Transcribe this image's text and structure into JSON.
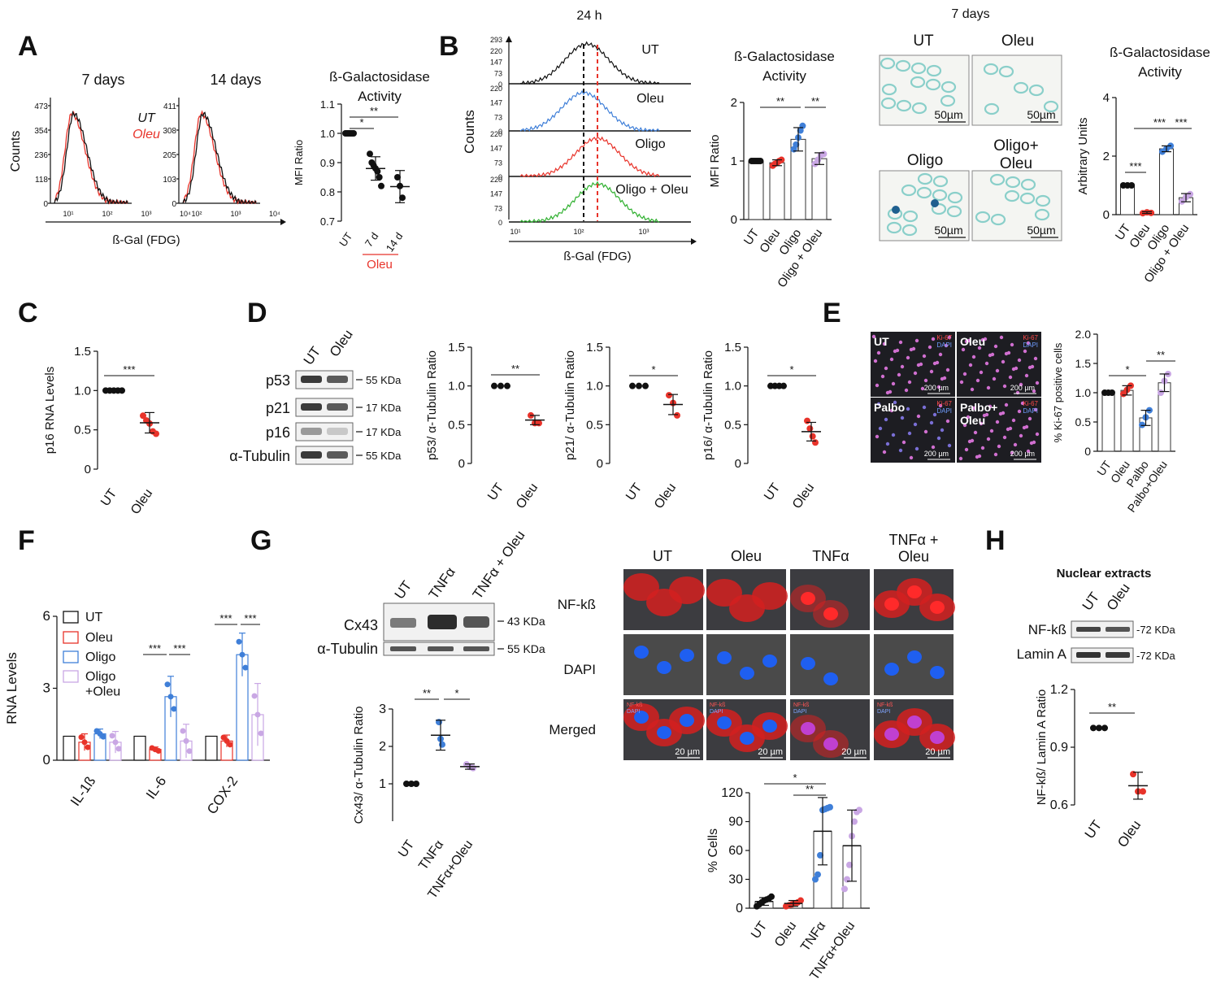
{
  "panel_letters": [
    "A",
    "B",
    "C",
    "D",
    "E",
    "F",
    "G",
    "H"
  ],
  "panelA": {
    "hist_titles": [
      "7 days",
      "14 days"
    ],
    "ylabel": "Counts",
    "xlabel": "ß-Gal (FDG)",
    "legend": [
      "UT",
      "Oleu"
    ],
    "hist1_yticks": [
      "473",
      "354",
      "236",
      "118",
      "0"
    ],
    "hist2_yticks": [
      "411",
      "308",
      "205",
      "103",
      "0"
    ],
    "xticks": [
      "10¹",
      "10²",
      "10³",
      "10⁴"
    ],
    "chart_title": [
      "ß-Galactosidase",
      "Activity"
    ],
    "chart_ylabel": "MFI Ratio",
    "chart_xticks": [
      "UT",
      "7 d",
      "14 d"
    ],
    "chart_group_label": "Oleu",
    "sig": [
      "*",
      "**"
    ]
  },
  "panelB": {
    "top_title": "24 h",
    "ylabel": "Counts",
    "xlabel": "ß-Gal (FDG)",
    "track_labels": [
      "UT",
      "Oleu",
      "Oligo",
      "Oligo + Oleu"
    ],
    "track1_yticks": [
      "293",
      "220",
      "147",
      "73",
      "0"
    ],
    "track_yticks": [
      "220",
      "147",
      "73",
      "0"
    ],
    "xticks": [
      "10¹",
      "10²",
      "10³"
    ],
    "chart_title": [
      "ß-Galactosidase",
      "Activity"
    ],
    "chart_ylabel": "MFI Ratio",
    "chart_xticks": [
      "UT",
      "Oleu",
      "Oligo",
      "Oligo + Oleu"
    ],
    "sig": [
      "**",
      "**"
    ],
    "img_title": "7 days",
    "img_labels": [
      "UT",
      "Oleu",
      "Oligo",
      "Oligo+\nOleu"
    ],
    "scale": "50µm",
    "chart2_title": [
      "ß-Galactosidase",
      "Activity"
    ],
    "chart2_ylabel": "Arbitrary Units",
    "chart2_xticks": [
      "UT",
      "Oleu",
      "Oligo",
      "Oligo + Oleu"
    ],
    "sig2": [
      "***",
      "***",
      "***"
    ]
  },
  "panelC": {
    "ylabel": "p16 RNA Levels",
    "xticks": [
      "UT",
      "Oleu"
    ],
    "sig": "***"
  },
  "panelD": {
    "lanes": [
      "UT",
      "Oleu"
    ],
    "proteins": [
      "p53",
      "p21",
      "p16",
      "α-Tubulin"
    ],
    "sizes": [
      "55 KDa",
      "17 KDa",
      "17 KDa",
      "55 KDa"
    ],
    "ylabels": [
      "p53/ α-Tubulin Ratio",
      "p21/ α-Tubulin Ratio",
      "p16/ α-Tubulin Ratio"
    ],
    "xticks": [
      "UT",
      "Oleu"
    ],
    "sig": [
      "**",
      "*",
      "*"
    ]
  },
  "panelE": {
    "tiles": [
      "UT",
      "Oleu",
      "Palbo",
      "Palbo+\nOleu"
    ],
    "stain": [
      "Ki-67",
      "DAPI"
    ],
    "scale": "200 µm",
    "ylabel": "% Ki-67 positive cells",
    "xticks": [
      "UT",
      "Oleu",
      "Palbo",
      "Palbo+Oleu"
    ],
    "sig": [
      "*",
      "**"
    ]
  },
  "panelF": {
    "ylabel": "RNA Levels",
    "legend": [
      "UT",
      "Oleu",
      "Oligo",
      "Oligo\n+Oleu"
    ],
    "groups": [
      "IL-1ß",
      "IL-6",
      "COX-2"
    ],
    "sig": [
      "***",
      "***",
      "***",
      "***"
    ]
  },
  "panelG": {
    "lanes": [
      "UT",
      "TNFα",
      "TNFα + Oleu"
    ],
    "proteins": [
      "Cx43",
      "α-Tubulin"
    ],
    "sizes": [
      "43 KDa",
      "55 KDa"
    ],
    "ylabel": "Cx43/ α-Tubulin Ratio",
    "xticks": [
      "UT",
      "TNFα",
      "TNFα+Oleu"
    ],
    "sig": [
      "**",
      "*"
    ],
    "img_cols": [
      "UT",
      "Oleu",
      "TNFα",
      "TNFα +\nOleu"
    ],
    "img_rows": [
      "NF-kß",
      "DAPI",
      "Merged"
    ],
    "scale": "20 µm",
    "merged_tags": [
      "NF-kß",
      "DAPI"
    ],
    "chart2_ylabel": "% Cells",
    "chart2_xticks": [
      "UT",
      "Oleu",
      "TNFα",
      "TNFα+Oleu"
    ],
    "sig2": [
      "*",
      "**"
    ]
  },
  "panelH": {
    "title": "Nuclear extracts",
    "lanes": [
      "UT",
      "Oleu"
    ],
    "proteins": [
      "NF-kß",
      "Lamin A"
    ],
    "sizes": [
      "72 KDa",
      "72 KDa"
    ],
    "ylabel": "NF-kß/ Lamin A Ratio",
    "xticks": [
      "UT",
      "Oleu"
    ],
    "sig": "**"
  },
  "colors": {
    "ut": "#111111",
    "oleu": "#e8332a",
    "oligo": "#3f7fd8",
    "combo": "#c9a7e4",
    "green": "#2fb02f",
    "stain_blue": "#6fc5bf"
  },
  "chart_data": [
    {
      "type": "scatter",
      "panel": "A",
      "title": "ß-Galactosidase Activity",
      "ylabel": "MFI Ratio",
      "categories": [
        "UT",
        "7 d",
        "14 d"
      ],
      "ylim": [
        0.7,
        1.1
      ],
      "yticks": [
        0.7,
        0.8,
        0.9,
        1.0,
        1.1
      ],
      "series": [
        {
          "name": "UT",
          "values": [
            1.0
          ]
        },
        {
          "name": "Oleu 7 d",
          "values": [
            0.93,
            0.9,
            0.89,
            0.88,
            0.87,
            0.85,
            0.82
          ]
        },
        {
          "name": "Oleu 14 d",
          "values": [
            0.85,
            0.82,
            0.78
          ]
        }
      ],
      "means": [
        1.0,
        0.88,
        0.818
      ],
      "sd": [
        0.0,
        0.04,
        0.055
      ]
    },
    {
      "type": "bar",
      "panel": "B",
      "title": "ß-Galactosidase Activity",
      "ylabel": "MFI Ratio",
      "categories": [
        "UT",
        "Oleu",
        "Oligo",
        "Oligo + Oleu"
      ],
      "ylim": [
        0,
        2
      ],
      "yticks": [
        0,
        1,
        2
      ],
      "values": [
        1.0,
        0.97,
        1.37,
        1.04
      ],
      "sd": [
        0.0,
        0.05,
        0.2,
        0.1
      ],
      "points": [
        [
          1,
          1,
          1,
          1,
          1,
          1
        ],
        [
          0.92,
          0.95,
          0.97,
          1.0,
          1.02
        ],
        [
          1.2,
          1.28,
          1.4,
          1.52,
          1.6
        ],
        [
          0.95,
          1.02,
          1.1,
          1.12
        ]
      ]
    },
    {
      "type": "bar",
      "panel": "B2",
      "title": "ß-Galactosidase Activity",
      "ylabel": "Arbitrary Units",
      "categories": [
        "UT",
        "Oleu",
        "Oligo",
        "Oligo + Oleu"
      ],
      "ylim": [
        0,
        4
      ],
      "yticks": [
        0,
        2,
        4
      ],
      "values": [
        1.0,
        0.07,
        2.25,
        0.58
      ],
      "sd": [
        0.0,
        0.03,
        0.1,
        0.14
      ],
      "points": [
        [
          1,
          1,
          1
        ],
        [
          0.05,
          0.08,
          0.06
        ],
        [
          2.15,
          2.25,
          2.35
        ],
        [
          0.45,
          0.6,
          0.7
        ]
      ]
    },
    {
      "type": "scatter",
      "panel": "C",
      "ylabel": "p16 RNA Levels",
      "categories": [
        "UT",
        "Oleu"
      ],
      "ylim": [
        0,
        1.5
      ],
      "yticks": [
        0,
        0.5,
        1.0,
        1.5
      ],
      "points": [
        [
          1,
          1,
          1,
          1,
          1
        ],
        [
          0.68,
          0.62,
          0.58,
          0.48,
          0.45
        ]
      ],
      "means": [
        1.0,
        0.59
      ],
      "sd": [
        0,
        0.13
      ]
    },
    {
      "type": "scatter",
      "panel": "D1",
      "ylabel": "p53/ α-Tubulin Ratio",
      "categories": [
        "UT",
        "Oleu"
      ],
      "ylim": [
        0,
        1.5
      ],
      "yticks": [
        0,
        0.5,
        1.0,
        1.5
      ],
      "points": [
        [
          1,
          1,
          1
        ],
        [
          0.62,
          0.52,
          0.52
        ]
      ],
      "means": [
        1.0,
        0.56
      ],
      "sd": [
        0,
        0.06
      ]
    },
    {
      "type": "scatter",
      "panel": "D2",
      "ylabel": "p21/ α-Tubulin Ratio",
      "categories": [
        "UT",
        "Oleu"
      ],
      "ylim": [
        0,
        1.5
      ],
      "yticks": [
        0,
        0.5,
        1.0,
        1.5
      ],
      "points": [
        [
          1,
          1,
          1
        ],
        [
          0.88,
          0.78,
          0.62
        ]
      ],
      "means": [
        1.0,
        0.76
      ],
      "sd": [
        0,
        0.13
      ]
    },
    {
      "type": "scatter",
      "panel": "D3",
      "ylabel": "p16/ α-Tubulin Ratio",
      "categories": [
        "UT",
        "Oleu"
      ],
      "ylim": [
        0,
        1.5
      ],
      "yticks": [
        0,
        0.5,
        1.0,
        1.5
      ],
      "points": [
        [
          1,
          1,
          1,
          1
        ],
        [
          0.55,
          0.45,
          0.35,
          0.27
        ]
      ],
      "means": [
        1.0,
        0.41
      ],
      "sd": [
        0,
        0.12
      ]
    },
    {
      "type": "bar",
      "panel": "E",
      "ylabel": "% Ki-67 positive cells",
      "categories": [
        "UT",
        "Oleu",
        "Palbo",
        "Palbo+Oleu"
      ],
      "ylim": [
        0,
        2.0
      ],
      "yticks": [
        0,
        0.5,
        1.0,
        1.5,
        2.0
      ],
      "values": [
        1.0,
        1.04,
        0.57,
        1.17
      ],
      "sd": [
        0,
        0.08,
        0.13,
        0.15
      ],
      "points": [
        [
          1,
          1,
          1
        ],
        [
          0.98,
          1.05,
          1.12
        ],
        [
          0.45,
          0.58,
          0.7
        ],
        [
          1.0,
          1.2,
          1.32
        ]
      ]
    },
    {
      "type": "bar",
      "panel": "F",
      "ylabel": "RNA Levels",
      "categories": [
        "IL-1ß",
        "IL-6",
        "COX-2"
      ],
      "ylim": [
        0,
        6
      ],
      "yticks": [
        0,
        3,
        6
      ],
      "series": [
        {
          "name": "UT",
          "values": [
            1.0,
            1.0,
            1.0
          ]
        },
        {
          "name": "Oleu",
          "values": [
            0.75,
            0.45,
            0.8
          ]
        },
        {
          "name": "Oligo",
          "values": [
            1.1,
            2.65,
            4.4
          ]
        },
        {
          "name": "Oligo +Oleu",
          "values": [
            0.75,
            0.8,
            1.9
          ]
        }
      ],
      "sd": [
        [
          0,
          0,
          0
        ],
        [
          0.35,
          0.1,
          0.25
        ],
        [
          0.2,
          0.85,
          0.9
        ],
        [
          0.45,
          0.7,
          1.3
        ]
      ]
    },
    {
      "type": "scatter",
      "panel": "G1",
      "ylabel": "Cx43/ α-Tubulin Ratio",
      "categories": [
        "UT",
        "TNFα",
        "TNFα+Oleu"
      ],
      "ylim": [
        0,
        3
      ],
      "yticks": [
        1,
        2,
        3
      ],
      "points": [
        [
          1,
          1,
          1
        ],
        [
          2.65,
          2.2,
          2.05
        ],
        [
          1.52,
          1.45,
          1.42
        ]
      ],
      "means": [
        1.0,
        2.3,
        1.46
      ],
      "sd": [
        0,
        0.4,
        0.07
      ]
    },
    {
      "type": "bar",
      "panel": "G2",
      "ylabel": "% Cells",
      "categories": [
        "UT",
        "Oleu",
        "TNFα",
        "TNFα+Oleu"
      ],
      "ylim": [
        0,
        120
      ],
      "yticks": [
        0,
        30,
        60,
        90,
        120
      ],
      "values": [
        7,
        5,
        80,
        65
      ],
      "sd": [
        4,
        3,
        35,
        37
      ],
      "points": [
        [
          2,
          4,
          6,
          8,
          9,
          10,
          12
        ],
        [
          2,
          3,
          4,
          5,
          6,
          8
        ],
        [
          30,
          35,
          55,
          102,
          103,
          104,
          105
        ],
        [
          20,
          30,
          45,
          75,
          90,
          100,
          102
        ]
      ]
    },
    {
      "type": "scatter",
      "panel": "H",
      "ylabel": "NF-kß/ Lamin A Ratio",
      "categories": [
        "UT",
        "Oleu"
      ],
      "ylim": [
        0.6,
        1.2
      ],
      "yticks": [
        0.6,
        0.9,
        1.2
      ],
      "points": [
        [
          1,
          1,
          1
        ],
        [
          0.76,
          0.67,
          0.67
        ]
      ],
      "means": [
        1.0,
        0.7
      ],
      "sd": [
        0,
        0.07
      ]
    }
  ]
}
